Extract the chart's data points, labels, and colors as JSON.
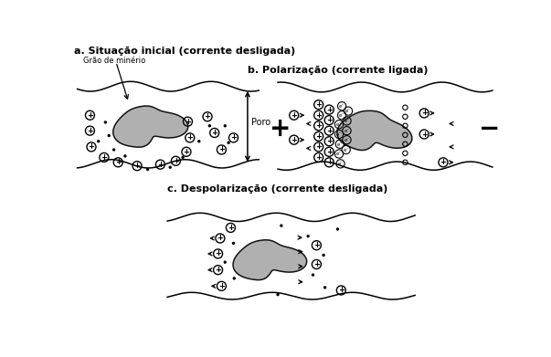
{
  "title_a": "a. Situação inicial (corrente desligada)",
  "title_b": "b. Polarização (corrente ligada)",
  "title_c": "c. Despolarização (corrente desligada)",
  "label_grao": "Grão de minério",
  "label_poro": "Poro",
  "bg_color": "#ffffff",
  "grain_color": "#b0b0b0",
  "grain_edge": "#111111",
  "line_color": "#111111"
}
